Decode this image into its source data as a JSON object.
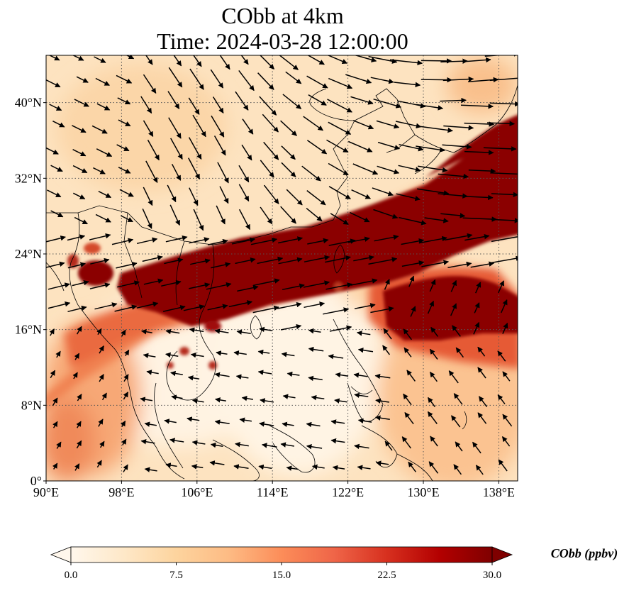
{
  "title": {
    "line1": "CObb at 4km",
    "line2": "Time: 2024-03-28 12:00:00"
  },
  "map": {
    "extent": {
      "lon": [
        90,
        140
      ],
      "lat": [
        0,
        45
      ]
    },
    "x_ticks": [
      {
        "lon": 90,
        "label": "90°E"
      },
      {
        "lon": 98,
        "label": "98°E"
      },
      {
        "lon": 106,
        "label": "106°E"
      },
      {
        "lon": 114,
        "label": "114°E"
      },
      {
        "lon": 122,
        "label": "122°E"
      },
      {
        "lon": 130,
        "label": "130°E"
      },
      {
        "lon": 138,
        "label": "138°E"
      }
    ],
    "y_ticks": [
      {
        "lat": 0,
        "label": "0°"
      },
      {
        "lat": 8,
        "label": "8°N"
      },
      {
        "lat": 16,
        "label": "16°N"
      },
      {
        "lat": 24,
        "label": "24°N"
      },
      {
        "lat": 32,
        "label": "32°N"
      },
      {
        "lat": 40,
        "label": "40°N"
      }
    ],
    "gridlines": true,
    "field_colors": {
      "low": "#fff5e6",
      "mid": "#fdb56c",
      "high": "#d94a1c",
      "max": "#800000"
    }
  },
  "colorbar": {
    "title": "CObb (ppbv)",
    "min": 0,
    "max": 30,
    "extend": "both",
    "ticks": [
      {
        "value": 0,
        "label": "0.0"
      },
      {
        "value": 7.5,
        "label": "7.5"
      },
      {
        "value": 15,
        "label": "15.0"
      },
      {
        "value": 22.5,
        "label": "22.5"
      },
      {
        "value": 30,
        "label": "30.0"
      }
    ],
    "colors": [
      "#fff7ec",
      "#fee8c8",
      "#fdd49e",
      "#fdbb84",
      "#fc8d59",
      "#ef6548",
      "#d7301f",
      "#b30000",
      "#7f0000"
    ]
  }
}
